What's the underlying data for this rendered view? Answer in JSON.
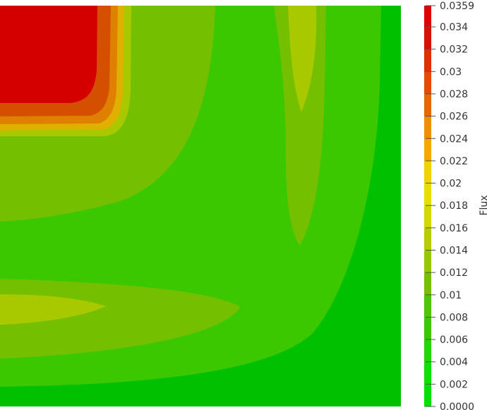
{
  "chart_data": {
    "type": "heatmap",
    "title": "",
    "colorbar": {
      "title": "Flux",
      "range": [
        0.0,
        0.0359
      ],
      "tick_labels": [
        "0.0359",
        "0.034",
        "0.032",
        "0.03",
        "0.028",
        "0.026",
        "0.024",
        "0.022",
        "0.02",
        "0.018",
        "0.016",
        "0.014",
        "0.012",
        "0.01",
        "0.008",
        "0.006",
        "0.004",
        "0.002",
        "0.0000"
      ],
      "bands": [
        {
          "low": 0.0,
          "high": 0.002,
          "color": "#00e000"
        },
        {
          "low": 0.002,
          "high": 0.004,
          "color": "#0ce100"
        },
        {
          "low": 0.004,
          "high": 0.006,
          "color": "#25d700"
        },
        {
          "low": 0.006,
          "high": 0.008,
          "color": "#3cc800"
        },
        {
          "low": 0.008,
          "high": 0.01,
          "color": "#4ec700"
        },
        {
          "low": 0.01,
          "high": 0.012,
          "color": "#74c000"
        },
        {
          "low": 0.012,
          "high": 0.014,
          "color": "#95c800"
        },
        {
          "low": 0.014,
          "high": 0.016,
          "color": "#b9cc00"
        },
        {
          "low": 0.016,
          "high": 0.018,
          "color": "#d4d700"
        },
        {
          "low": 0.018,
          "high": 0.02,
          "color": "#e8dc00"
        },
        {
          "low": 0.02,
          "high": 0.022,
          "color": "#f2d200"
        },
        {
          "low": 0.022,
          "high": 0.024,
          "color": "#f2a800"
        },
        {
          "low": 0.024,
          "high": 0.026,
          "color": "#f08e00"
        },
        {
          "low": 0.026,
          "high": 0.028,
          "color": "#e86800"
        },
        {
          "low": 0.028,
          "high": 0.03,
          "color": "#e64a00"
        },
        {
          "low": 0.03,
          "high": 0.032,
          "color": "#e13000"
        },
        {
          "low": 0.032,
          "high": 0.034,
          "color": "#d51100"
        },
        {
          "low": 0.034,
          "high": 0.0359,
          "color": "#e00000"
        }
      ]
    },
    "regions": [
      {
        "name": "background",
        "color": "#00c000"
      },
      {
        "name": "outer-band",
        "color": "#3cc800"
      },
      {
        "name": "mid-band",
        "color": "#74c000"
      },
      {
        "name": "lower-left-lobe",
        "color": "#a8c800"
      },
      {
        "name": "upper-right-lobe",
        "color": "#a8c800"
      },
      {
        "name": "hot-ring-yellow",
        "color": "#a8c800"
      },
      {
        "name": "hot-ring-gold",
        "color": "#e0b000"
      },
      {
        "name": "hot-ring-orange",
        "color": "#e08000"
      },
      {
        "name": "hot-ring-dark-orange",
        "color": "#d45000"
      },
      {
        "name": "hot-core",
        "color": "#d40000"
      }
    ]
  }
}
